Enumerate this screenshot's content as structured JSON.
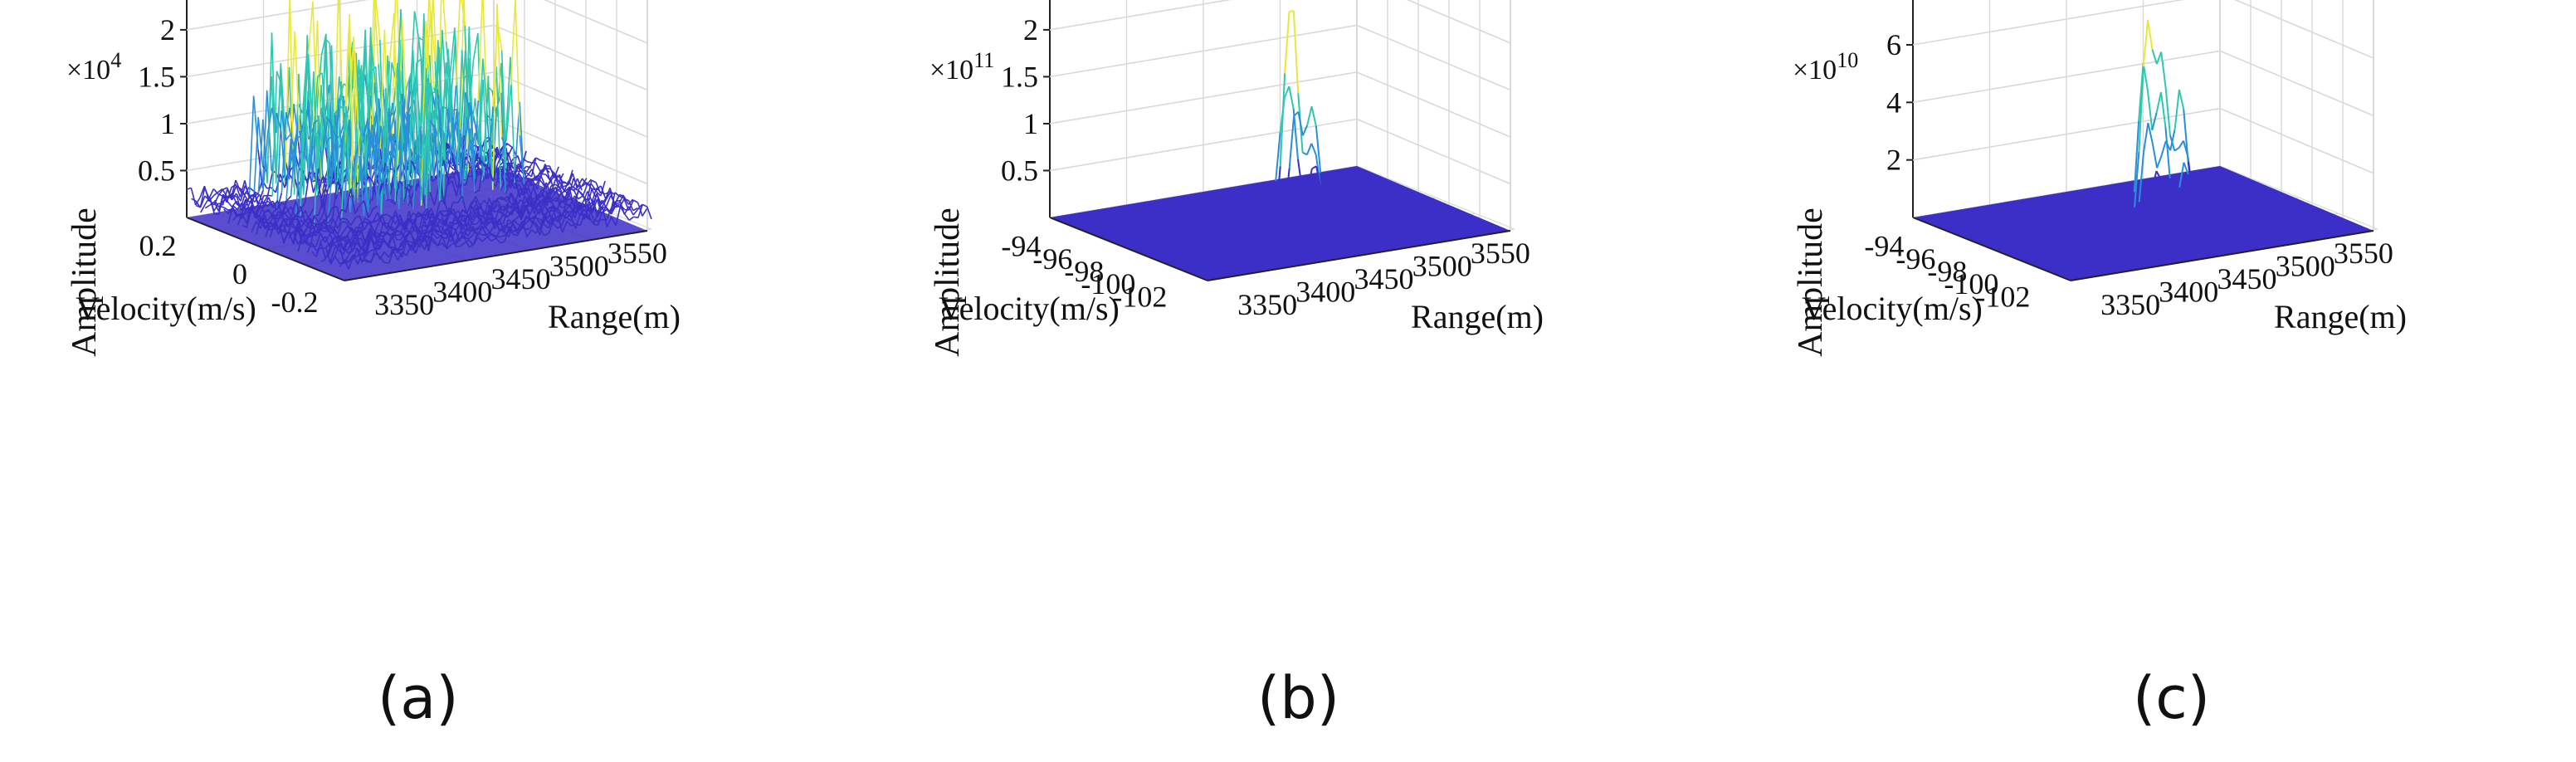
{
  "figure": {
    "panels": [
      {
        "id": "a",
        "label": "(a)"
      },
      {
        "id": "b",
        "label": "(b)"
      },
      {
        "id": "c",
        "label": "(c)"
      }
    ]
  },
  "colors": {
    "surface_base": "#3b2fc7",
    "surface_mid": "#2a8fd6",
    "surface_high": "#2fc7b0",
    "surface_peak": "#e8e83a",
    "grid": "#d9d9d9",
    "axis": "#222222"
  },
  "chart_data": [
    {
      "type": "surface3d",
      "panel": "(a)",
      "exponent_label": "× 10^4",
      "exponent_base": "×10",
      "exponent_power": "4",
      "zlabel": "Amplitude",
      "xlabel": "Range(m)",
      "ylabel": "Velocity(m/s)",
      "z_ticks": [
        "0.5",
        "1",
        "1.5",
        "2"
      ],
      "z_tick_values": [
        0.5,
        1,
        1.5,
        2
      ],
      "zlim": [
        0,
        2.3
      ],
      "x_ticks": [
        "3350",
        "3400",
        "3450",
        "3500",
        "3550"
      ],
      "xlim": [
        3320,
        3570
      ],
      "y_ticks": [
        "0.2",
        "0",
        "-0.2"
      ],
      "ylim": [
        -0.25,
        0.25
      ],
      "noise_floor": 0.25,
      "peak_region": {
        "range": [
          3370,
          3520
        ],
        "velocity": [
          -0.05,
          0.25
        ]
      },
      "peak_max": 2.2
    },
    {
      "type": "surface3d",
      "panel": "(b)",
      "exponent_base": "×10",
      "exponent_power": "11",
      "zlabel": "Amplitude",
      "xlabel": "Range(m)",
      "ylabel": "Velocity(m/s)",
      "z_ticks": [
        "0.5",
        "1",
        "1.5",
        "2"
      ],
      "z_tick_values": [
        0.5,
        1,
        1.5,
        2
      ],
      "zlim": [
        0,
        2.3
      ],
      "x_ticks": [
        "3350",
        "3400",
        "3450",
        "3500",
        "3550"
      ],
      "xlim": [
        3320,
        3570
      ],
      "y_ticks": [
        "-94",
        "-96",
        "-98",
        "-100",
        "-102"
      ],
      "ylim": [
        -104,
        -93
      ],
      "noise_floor": 0.0,
      "peaks": [
        {
          "range": 3445,
          "velocity": -99.2,
          "amp": 2.15
        },
        {
          "range": 3440,
          "velocity": -99.0,
          "amp": 0.85
        },
        {
          "range": 3450,
          "velocity": -98.8,
          "amp": 0.9
        },
        {
          "range": 3455,
          "velocity": -99.6,
          "amp": 0.75
        },
        {
          "range": 3460,
          "velocity": -99.4,
          "amp": 0.85
        },
        {
          "range": 3465,
          "velocity": -99.0,
          "amp": 0.55
        }
      ]
    },
    {
      "type": "surface3d",
      "panel": "(c)",
      "exponent_base": "×10",
      "exponent_power": "10",
      "zlabel": "Amplitude",
      "xlabel": "Range(m)",
      "ylabel": "Velocity(m/s)",
      "z_ticks": [
        "2",
        "4",
        "6"
      ],
      "z_tick_values": [
        2,
        4,
        6
      ],
      "zlim": [
        0,
        7.5
      ],
      "x_ticks": [
        "3350",
        "3400",
        "3450",
        "3500",
        "3550"
      ],
      "xlim": [
        3320,
        3570
      ],
      "y_ticks": [
        "-94",
        "-96",
        "-98",
        "-100",
        "-102"
      ],
      "ylim": [
        -104,
        -93
      ],
      "noise_floor": 0.0,
      "peaks": [
        {
          "range": 3440,
          "velocity": -99.0,
          "amp": 7.1
        },
        {
          "range": 3450,
          "velocity": -99.2,
          "amp": 5.1
        },
        {
          "range": 3455,
          "velocity": -98.8,
          "amp": 3.6
        },
        {
          "range": 3462,
          "velocity": -99.5,
          "amp": 4.6
        },
        {
          "range": 3435,
          "velocity": -99.4,
          "amp": 3.2
        },
        {
          "range": 3470,
          "velocity": -99.1,
          "amp": 2.5
        }
      ]
    }
  ]
}
